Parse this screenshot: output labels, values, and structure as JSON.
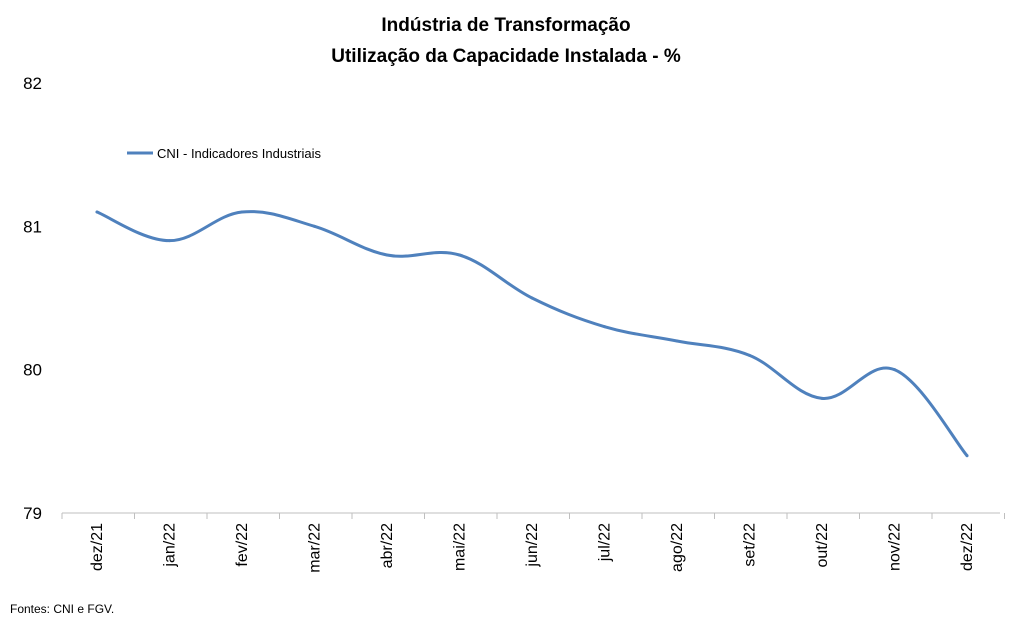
{
  "chart_data": {
    "type": "line",
    "title": "Indústria de Transformação",
    "subtitle": "Utilização da Capacidade Instalada - %",
    "xlabel": "",
    "ylabel": "",
    "categories": [
      "dez/21",
      "jan/22",
      "fev/22",
      "mar/22",
      "abr/22",
      "mai/22",
      "jun/22",
      "jul/22",
      "ago/22",
      "set/22",
      "out/22",
      "nov/22",
      "dez/22"
    ],
    "yticks": [
      79,
      80,
      81,
      82
    ],
    "ylim": [
      79,
      82
    ],
    "grid": false,
    "legend_position": "top-left",
    "series": [
      {
        "name": "CNI - Indicadores Industriais",
        "color": "#4f81bd",
        "values": [
          81.1,
          80.9,
          81.1,
          81.0,
          80.8,
          80.8,
          80.5,
          80.3,
          80.2,
          80.1,
          79.8,
          80.0,
          79.4
        ]
      }
    ]
  },
  "source": "Fontes: CNI e FGV."
}
